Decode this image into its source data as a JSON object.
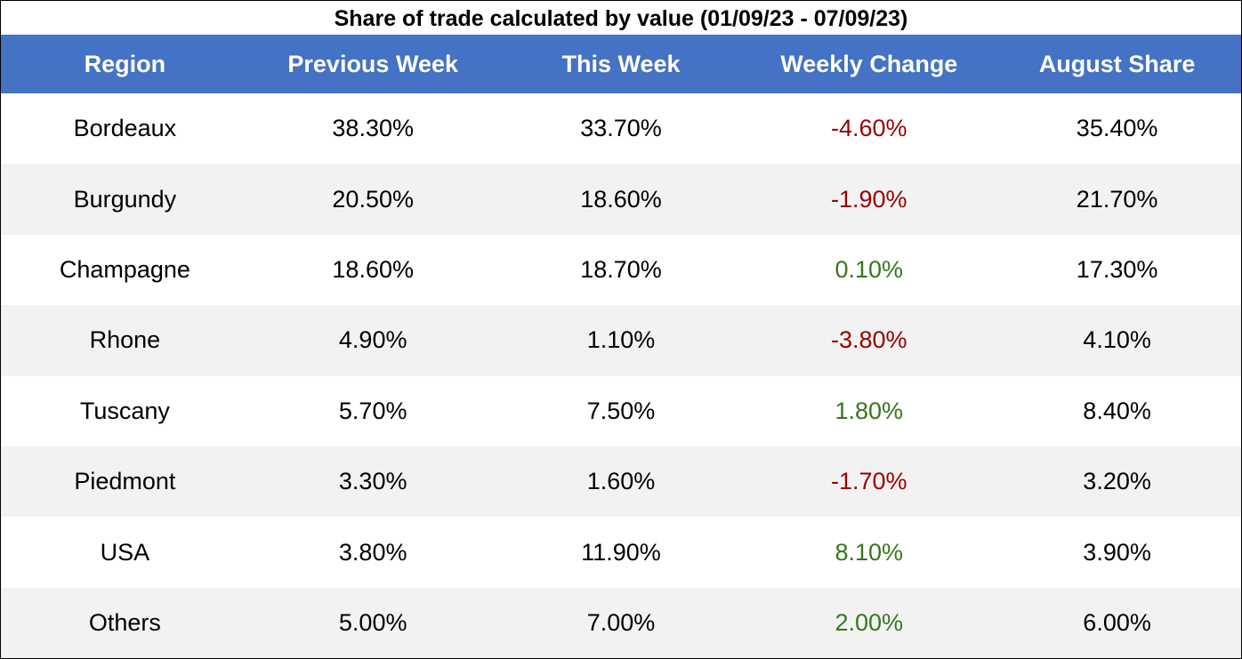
{
  "chart_data": {
    "type": "table",
    "title": "Share of trade calculated by value (01/09/23 - 07/09/23)",
    "columns": [
      "Region",
      "Previous Week",
      "This Week",
      "Weekly Change",
      "August Share"
    ],
    "rows": [
      {
        "region": "Bordeaux",
        "previous_week": "38.30%",
        "this_week": "33.70%",
        "weekly_change": "-4.60%",
        "august_share": "35.40%"
      },
      {
        "region": "Burgundy",
        "previous_week": "20.50%",
        "this_week": "18.60%",
        "weekly_change": "-1.90%",
        "august_share": "21.70%"
      },
      {
        "region": "Champagne",
        "previous_week": "18.60%",
        "this_week": "18.70%",
        "weekly_change": "0.10%",
        "august_share": "17.30%"
      },
      {
        "region": "Rhone",
        "previous_week": "4.90%",
        "this_week": "1.10%",
        "weekly_change": "-3.80%",
        "august_share": "4.10%"
      },
      {
        "region": "Tuscany",
        "previous_week": "5.70%",
        "this_week": "7.50%",
        "weekly_change": "1.80%",
        "august_share": "8.40%"
      },
      {
        "region": "Piedmont",
        "previous_week": "3.30%",
        "this_week": "1.60%",
        "weekly_change": "-1.70%",
        "august_share": "3.20%"
      },
      {
        "region": "USA",
        "previous_week": "3.80%",
        "this_week": "11.90%",
        "weekly_change": "8.10%",
        "august_share": "3.90%"
      },
      {
        "region": "Others",
        "previous_week": "5.00%",
        "this_week": "7.00%",
        "weekly_change": "2.00%",
        "august_share": "6.00%"
      }
    ]
  },
  "colors": {
    "header_background": "#4472c4",
    "header_text": "#ffffff",
    "alt_row_background": "#f2f2f2",
    "negative_change": "#990000",
    "positive_change": "#38761d"
  }
}
